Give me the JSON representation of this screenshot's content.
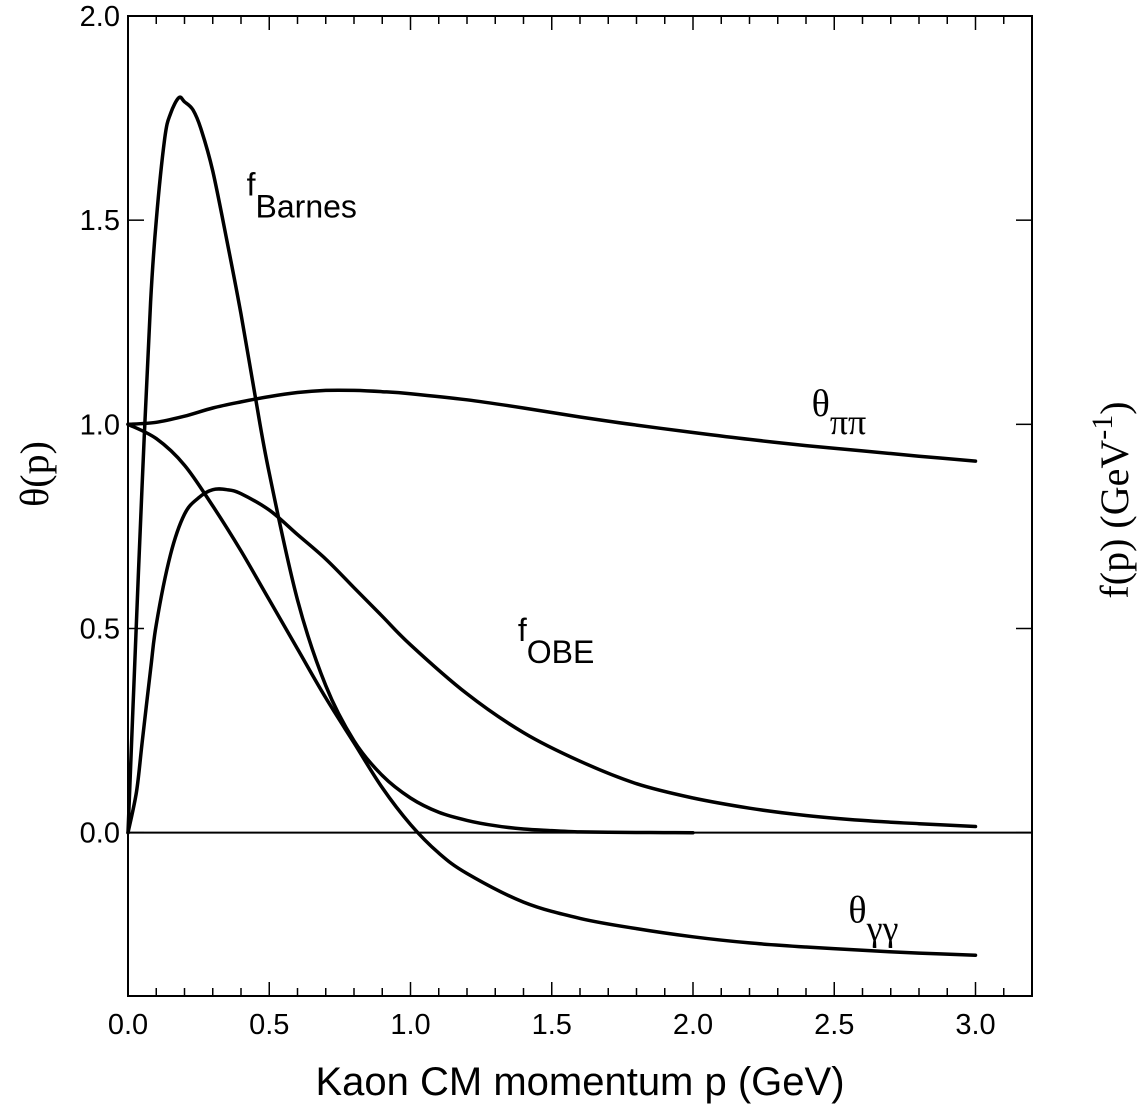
{
  "chart_data": {
    "type": "line",
    "title": "",
    "xlabel": "Kaon CM momentum p (GeV)",
    "ylabel": "θ(p)",
    "ylabel_right": {
      "main": "f(p)  (GeV",
      "sup": "-1",
      "close": ")"
    },
    "xlim": [
      0,
      3.2
    ],
    "ylim": [
      -0.4,
      2.0
    ],
    "x_ticks": [
      "0.0",
      "0.5",
      "1.0",
      "1.5",
      "2.0",
      "2.5",
      "3.0"
    ],
    "y_ticks": [
      "0.0",
      "0.5",
      "1.0",
      "1.5",
      "2.0"
    ],
    "grid": false,
    "series": [
      {
        "name": "θππ",
        "x": [
          0,
          0.1,
          0.2,
          0.3,
          0.4,
          0.5,
          0.6,
          0.7,
          0.8,
          0.9,
          1.0,
          1.2,
          1.4,
          1.6,
          1.8,
          2.0,
          2.2,
          2.4,
          2.6,
          2.8,
          3.0
        ],
        "y": [
          1.0,
          1.005,
          1.02,
          1.04,
          1.055,
          1.068,
          1.078,
          1.083,
          1.083,
          1.08,
          1.075,
          1.06,
          1.04,
          1.018,
          0.998,
          0.98,
          0.963,
          0.948,
          0.935,
          0.922,
          0.91
        ]
      },
      {
        "name": "θγγ",
        "x": [
          0,
          0.1,
          0.2,
          0.3,
          0.4,
          0.5,
          0.6,
          0.7,
          0.8,
          0.9,
          1.0,
          1.1,
          1.2,
          1.4,
          1.6,
          1.8,
          2.0,
          2.2,
          2.4,
          2.6,
          2.8,
          3.0
        ],
        "y": [
          1.0,
          0.965,
          0.9,
          0.8,
          0.69,
          0.57,
          0.45,
          0.33,
          0.22,
          0.11,
          0.02,
          -0.05,
          -0.1,
          -0.17,
          -0.21,
          -0.235,
          -0.255,
          -0.27,
          -0.28,
          -0.288,
          -0.295,
          -0.3
        ]
      },
      {
        "name": "f_Barnes",
        "x": [
          0,
          0.02,
          0.05,
          0.08,
          0.1,
          0.13,
          0.15,
          0.18,
          0.2,
          0.23,
          0.26,
          0.3,
          0.35,
          0.4,
          0.45,
          0.5,
          0.6,
          0.7,
          0.8,
          0.9,
          1.0,
          1.1,
          1.2,
          1.3,
          1.4,
          1.5,
          1.6,
          1.7,
          1.8,
          1.9,
          2.0
        ],
        "y": [
          0,
          0.35,
          0.85,
          1.3,
          1.5,
          1.7,
          1.76,
          1.8,
          1.79,
          1.77,
          1.72,
          1.62,
          1.45,
          1.27,
          1.07,
          0.88,
          0.57,
          0.36,
          0.225,
          0.14,
          0.085,
          0.05,
          0.03,
          0.017,
          0.009,
          0.005,
          0.002,
          0.001,
          0.0005,
          0.0002,
          0
        ]
      },
      {
        "name": "f_OBE",
        "x": [
          0,
          0.03,
          0.05,
          0.08,
          0.1,
          0.15,
          0.2,
          0.25,
          0.3,
          0.35,
          0.4,
          0.5,
          0.6,
          0.7,
          0.8,
          0.9,
          1.0,
          1.2,
          1.4,
          1.6,
          1.8,
          2.0,
          2.2,
          2.4,
          2.6,
          2.8,
          3.0
        ],
        "y": [
          0,
          0.1,
          0.22,
          0.4,
          0.51,
          0.68,
          0.78,
          0.82,
          0.84,
          0.84,
          0.83,
          0.79,
          0.73,
          0.67,
          0.6,
          0.53,
          0.46,
          0.34,
          0.245,
          0.175,
          0.12,
          0.085,
          0.06,
          0.042,
          0.03,
          0.022,
          0.015
        ]
      }
    ],
    "annotations": [
      {
        "text": "f",
        "sub": "Barnes",
        "x": 0.42,
        "y": 1.56
      },
      {
        "text": "θ",
        "sub": "ππ",
        "x": 2.42,
        "y": 1.02
      },
      {
        "text": "f",
        "sub": "OBE",
        "x": 1.38,
        "y": 0.47
      },
      {
        "text": "θ",
        "sub": "γγ",
        "x": 2.55,
        "y": -0.22
      }
    ]
  }
}
